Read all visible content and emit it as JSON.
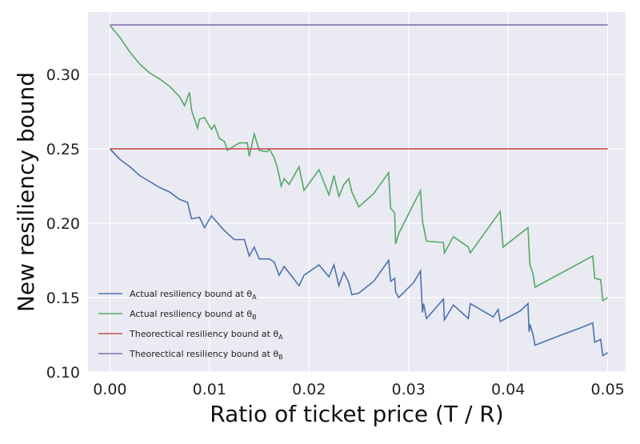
{
  "chart_data": {
    "type": "line",
    "title": "",
    "xlabel": "Ratio of ticket price (T / R)",
    "ylabel": "New resiliency bound",
    "xlim": [
      -0.0022,
      0.0518
    ],
    "ylim": [
      0.1,
      0.342
    ],
    "x_ticks": [
      0.0,
      0.01,
      0.02,
      0.03,
      0.04,
      0.05
    ],
    "x_tick_labels": [
      "0.00",
      "0.01",
      "0.02",
      "0.03",
      "0.04",
      "0.05"
    ],
    "y_ticks": [
      0.1,
      0.15,
      0.2,
      0.25,
      0.3
    ],
    "y_tick_labels": [
      "0.10",
      "0.15",
      "0.20",
      "0.25",
      "0.30"
    ],
    "grid": true,
    "background": "#EAEAF2",
    "legend_placement": "lower-left",
    "series": [
      {
        "name": "Actual resiliency bound at θA",
        "legend_prefix": "Actual resiliency bound at θ",
        "legend_sub": "A",
        "color": "#4C72B0",
        "x": [
          0.0,
          0.001,
          0.002,
          0.003,
          0.004,
          0.005,
          0.006,
          0.007,
          0.0078,
          0.0082,
          0.009,
          0.0095,
          0.0102,
          0.0115,
          0.0125,
          0.0135,
          0.014,
          0.0145,
          0.015,
          0.016,
          0.0165,
          0.017,
          0.0175,
          0.019,
          0.0195,
          0.021,
          0.022,
          0.0225,
          0.023,
          0.0235,
          0.024,
          0.0243,
          0.025,
          0.0265,
          0.028,
          0.0282,
          0.0286,
          0.0287,
          0.029,
          0.0305,
          0.0312,
          0.0314,
          0.0315,
          0.0318,
          0.0335,
          0.0336,
          0.0345,
          0.036,
          0.0362,
          0.0385,
          0.039,
          0.0392,
          0.0412,
          0.042,
          0.0421,
          0.0422,
          0.0425,
          0.0427,
          0.045,
          0.0474,
          0.0485,
          0.0487,
          0.0493,
          0.0495,
          0.05
        ],
        "y": [
          0.25,
          0.243,
          0.238,
          0.232,
          0.228,
          0.224,
          0.221,
          0.216,
          0.214,
          0.203,
          0.204,
          0.197,
          0.205,
          0.195,
          0.189,
          0.189,
          0.178,
          0.184,
          0.176,
          0.176,
          0.174,
          0.165,
          0.171,
          0.158,
          0.165,
          0.172,
          0.164,
          0.172,
          0.158,
          0.167,
          0.16,
          0.152,
          0.153,
          0.161,
          0.175,
          0.161,
          0.163,
          0.154,
          0.15,
          0.16,
          0.168,
          0.14,
          0.146,
          0.136,
          0.149,
          0.135,
          0.145,
          0.136,
          0.146,
          0.137,
          0.142,
          0.134,
          0.141,
          0.146,
          0.127,
          0.132,
          0.125,
          0.118,
          0.124,
          0.13,
          0.133,
          0.12,
          0.122,
          0.111,
          0.113
        ]
      },
      {
        "name": "Actual resiliency bound at θB",
        "legend_prefix": "Actual resiliency bound at θ",
        "legend_sub": "B",
        "color": "#55A868",
        "x": [
          0.0,
          0.001,
          0.002,
          0.003,
          0.004,
          0.005,
          0.006,
          0.007,
          0.0075,
          0.008,
          0.0082,
          0.0088,
          0.009,
          0.0095,
          0.0102,
          0.0105,
          0.011,
          0.0115,
          0.0118,
          0.0125,
          0.013,
          0.0138,
          0.014,
          0.0145,
          0.015,
          0.0158,
          0.016,
          0.0165,
          0.0168,
          0.017,
          0.0172,
          0.0175,
          0.018,
          0.019,
          0.0195,
          0.021,
          0.022,
          0.0225,
          0.023,
          0.0235,
          0.024,
          0.0243,
          0.025,
          0.0265,
          0.028,
          0.0282,
          0.0286,
          0.0287,
          0.029,
          0.0312,
          0.0314,
          0.0315,
          0.0318,
          0.0335,
          0.0336,
          0.0345,
          0.036,
          0.0362,
          0.0392,
          0.0395,
          0.042,
          0.0421,
          0.0422,
          0.0425,
          0.0427,
          0.0485,
          0.0487,
          0.0493,
          0.0495,
          0.05
        ],
        "y": [
          0.333,
          0.325,
          0.315,
          0.307,
          0.301,
          0.297,
          0.292,
          0.285,
          0.279,
          0.288,
          0.276,
          0.264,
          0.27,
          0.271,
          0.263,
          0.266,
          0.257,
          0.255,
          0.249,
          0.252,
          0.254,
          0.254,
          0.245,
          0.26,
          0.249,
          0.248,
          0.25,
          0.244,
          0.238,
          0.232,
          0.225,
          0.23,
          0.226,
          0.238,
          0.222,
          0.236,
          0.219,
          0.232,
          0.218,
          0.226,
          0.23,
          0.221,
          0.211,
          0.22,
          0.234,
          0.21,
          0.207,
          0.186,
          0.193,
          0.222,
          0.201,
          0.198,
          0.188,
          0.187,
          0.18,
          0.191,
          0.184,
          0.18,
          0.208,
          0.184,
          0.197,
          0.183,
          0.172,
          0.166,
          0.157,
          0.178,
          0.163,
          0.162,
          0.148,
          0.15
        ]
      },
      {
        "name": "Theorectical resiliency bound at θA",
        "legend_prefix": "Theorectical resiliency bound at θ",
        "legend_sub": "A",
        "color": "#C44E52",
        "x": [
          0.0,
          0.05
        ],
        "y": [
          0.25,
          0.25
        ]
      },
      {
        "name": "Theorectical resiliency bound at θB",
        "legend_prefix": "Theorectical resiliency bound at θ",
        "legend_sub": "B",
        "color": "#8172B2",
        "x": [
          0.0,
          0.05
        ],
        "y": [
          0.3333,
          0.3333
        ]
      }
    ]
  }
}
